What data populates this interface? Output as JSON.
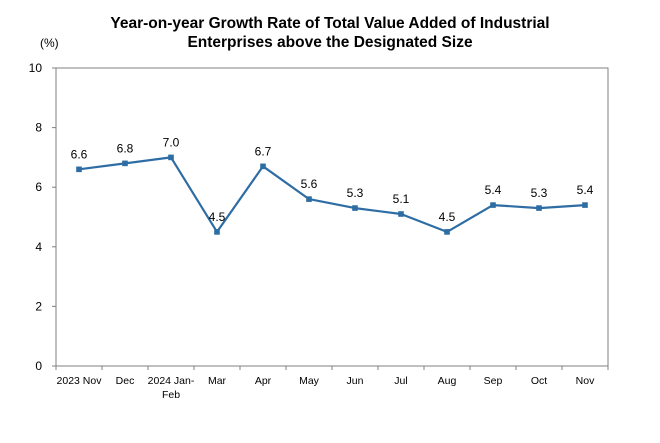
{
  "chart_data": {
    "type": "line",
    "title_line1": "Year-on-year Growth Rate of Total Value Added of Industrial",
    "title_line2": "Enterprises above the Designated Size",
    "ylabel": "(%)",
    "xlabel": "",
    "ylim": [
      0,
      10
    ],
    "yticks": [
      0,
      2,
      4,
      6,
      8,
      10
    ],
    "grid": false,
    "categories": [
      [
        "2023 Nov"
      ],
      [
        "Dec"
      ],
      [
        "2024 Jan-",
        "Feb"
      ],
      [
        "Mar"
      ],
      [
        "Apr"
      ],
      [
        "May"
      ],
      [
        "Jun"
      ],
      [
        "Jul"
      ],
      [
        "Aug"
      ],
      [
        "Sep"
      ],
      [
        "Oct"
      ],
      [
        "Nov"
      ]
    ],
    "values": [
      6.6,
      6.8,
      7.0,
      4.5,
      6.7,
      5.6,
      5.3,
      5.1,
      4.5,
      5.4,
      5.3,
      5.4
    ],
    "data_labels": [
      "6.6",
      "6.8",
      "7.0",
      "4.5",
      "6.7",
      "5.6",
      "5.3",
      "5.1",
      "4.5",
      "5.4",
      "5.3",
      "5.4"
    ],
    "line_color": "#2e6da4"
  }
}
